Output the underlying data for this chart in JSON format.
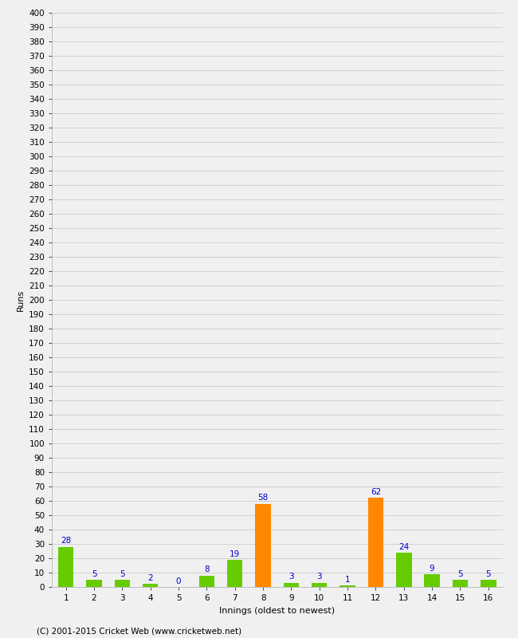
{
  "title": "",
  "xlabel": "Innings (oldest to newest)",
  "ylabel": "Runs",
  "categories": [
    1,
    2,
    3,
    4,
    5,
    6,
    7,
    8,
    9,
    10,
    11,
    12,
    13,
    14,
    15,
    16
  ],
  "values": [
    28,
    5,
    5,
    2,
    0,
    8,
    19,
    58,
    3,
    3,
    1,
    62,
    24,
    9,
    5,
    5
  ],
  "bar_colors": [
    "#66cc00",
    "#66cc00",
    "#66cc00",
    "#66cc00",
    "#66cc00",
    "#66cc00",
    "#66cc00",
    "#ff8800",
    "#66cc00",
    "#66cc00",
    "#66cc00",
    "#ff8800",
    "#66cc00",
    "#66cc00",
    "#66cc00",
    "#66cc00"
  ],
  "ylim": [
    0,
    400
  ],
  "ytick_step": 10,
  "label_color": "#0000cc",
  "background_color": "#f0f0f0",
  "plot_bg_color": "#f0f0f0",
  "grid_color": "#cccccc",
  "footer": "(C) 2001-2015 Cricket Web (www.cricketweb.net)",
  "label_fontsize": 7.5,
  "axis_label_fontsize": 8,
  "tick_fontsize": 7.5,
  "footer_fontsize": 7.5,
  "bar_width": 0.55
}
